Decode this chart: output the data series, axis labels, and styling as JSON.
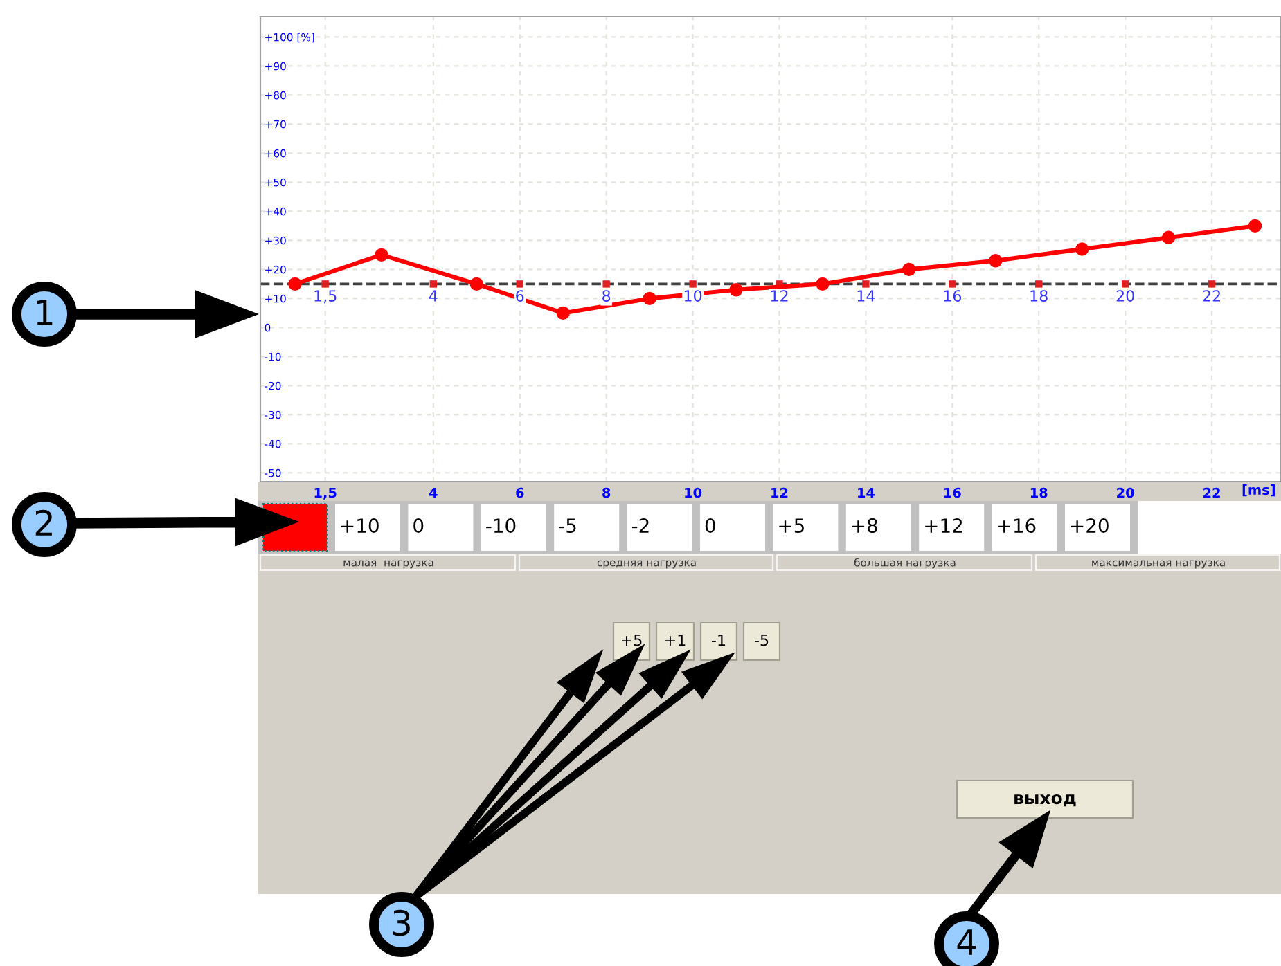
{
  "chart_data": {
    "type": "line",
    "x": [
      0.8,
      2.8,
      5,
      7,
      9,
      11,
      13,
      15,
      17,
      19,
      21,
      23
    ],
    "series": [
      {
        "color": "#ff0000",
        "values": [
          15,
          25,
          15,
          5,
          10,
          13,
          15,
          20,
          23,
          27,
          31,
          35
        ],
        "marker": "circle",
        "line_style": "solid"
      },
      {
        "type": "scatter",
        "color": "#e02020",
        "x": [
          1.5,
          4,
          6,
          8,
          10,
          12,
          14,
          16,
          18,
          20,
          22
        ],
        "values": [
          15,
          15,
          15,
          15,
          15,
          15,
          15,
          15,
          15,
          15,
          15
        ],
        "marker": "square"
      }
    ],
    "xlim": [
      0,
      23.6
    ],
    "ylim": [
      -53,
      107
    ],
    "x2lim": [
      0,
      23.6
    ],
    "xticks": [
      {
        "value": 1.5,
        "label": "1,5"
      },
      4,
      6,
      8,
      10,
      12,
      14,
      16,
      18,
      20,
      22
    ],
    "x2ticks": [
      {
        "value": 1.5,
        "label": "1,5"
      },
      4,
      6,
      8,
      10,
      12,
      14,
      16,
      18,
      20,
      22
    ],
    "yticks": [
      -50,
      -40,
      -30,
      -20,
      -10,
      0,
      {
        "value": 10,
        "label": "+10"
      },
      {
        "value": 20,
        "label": "+20"
      },
      {
        "value": 30,
        "label": "+30"
      },
      {
        "value": 40,
        "label": "+40"
      },
      {
        "value": 50,
        "label": "+50"
      },
      {
        "value": 60,
        "label": "+60"
      },
      {
        "value": 70,
        "label": "+70"
      },
      {
        "value": 80,
        "label": "+80"
      },
      {
        "value": 90,
        "label": "+90"
      },
      {
        "value": 100,
        "label": "+100 [%]"
      }
    ],
    "xlabel": "[ms]",
    "grid": true,
    "ref_lines": [
      {
        "axis": "y",
        "value": 15,
        "color": "#404040",
        "line_style": "dashed"
      }
    ],
    "annotations": [
      "+10",
      "0",
      "-10",
      "-5",
      "-2",
      "0",
      "+5",
      "+8",
      "+12",
      "+16",
      "+20",
      "малая  нагрузка",
      "средняя нагрузка",
      "большая нагрузка",
      "максимальная нагрузка",
      "+5",
      "+1",
      "-1",
      "-5",
      "выход",
      "1",
      "2",
      "3",
      "4"
    ]
  }
}
